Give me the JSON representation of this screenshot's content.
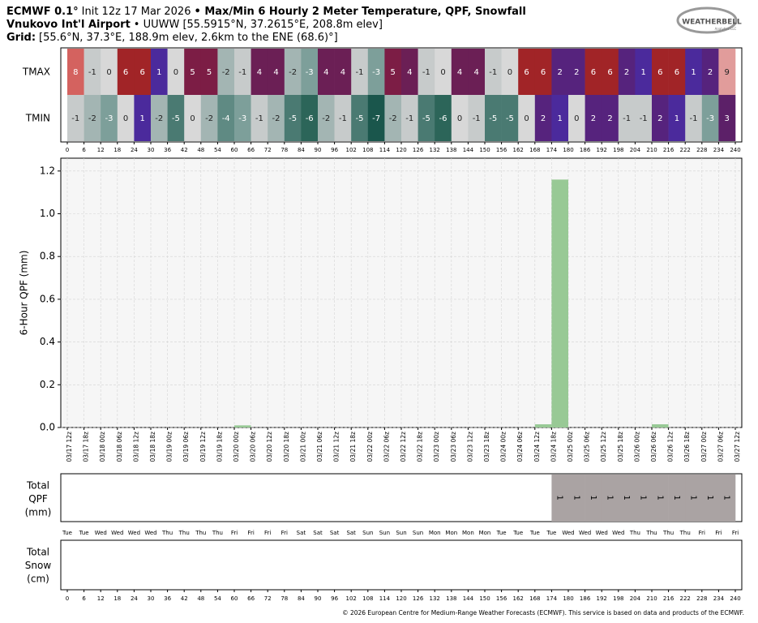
{
  "header": {
    "model": "ECMWF 0.1°",
    "init": "Init 12z 17 Mar 2026",
    "product": "• Max/Min 6 Hourly 2 Meter Temperature,  QPF,  Snowfall",
    "station": "Vnukovo Int'l Airport",
    "station_info": "• UUWW [55.5915°N, 37.2615°E, 208.8m elev]",
    "grid_label": "Grid:",
    "grid_info": "[55.6°N, 37.3°E, 188.9m elev, 2.6km to the ENE (68.6)°]",
    "logo": "WEATHERBELL",
    "logo_sub": "Analytics LLC",
    "footer": "© 2026 European Centre for Medium-Range Weather Forecasts (ECMWF). This service is based on data and products of the ECMWF."
  },
  "chart_data": [
    {
      "type": "heatmap",
      "series": [
        {
          "name": "TMAX",
          "values": [
            8,
            -1,
            0,
            6,
            6,
            1,
            0,
            5,
            5,
            -2,
            -1,
            4,
            4,
            -2,
            -3,
            4,
            4,
            -1,
            -3,
            5,
            4,
            -1,
            0,
            4,
            4,
            -1,
            0,
            6,
            6,
            2,
            2,
            6,
            6,
            2,
            1,
            6,
            6,
            1,
            2,
            9
          ]
        },
        {
          "name": "TMIN",
          "values": [
            -1,
            -2,
            -3,
            0,
            1,
            -2,
            -5,
            0,
            -2,
            -4,
            -3,
            -1,
            -2,
            -5,
            -6,
            -2,
            -1,
            -5,
            -7,
            -2,
            -1,
            -5,
            -6,
            0,
            -1,
            -5,
            -5,
            0,
            2,
            1,
            0,
            2,
            2,
            -1,
            -1,
            2,
            1,
            -1,
            -3,
            3
          ]
        }
      ],
      "xlim": [
        0,
        240
      ],
      "xticks": [
        0,
        6,
        12,
        18,
        24,
        30,
        36,
        42,
        48,
        54,
        60,
        66,
        72,
        78,
        84,
        90,
        96,
        102,
        108,
        114,
        120,
        126,
        132,
        138,
        144,
        150,
        156,
        162,
        168,
        174,
        180,
        186,
        192,
        198,
        204,
        210,
        216,
        222,
        228,
        234,
        240
      ]
    },
    {
      "type": "bar",
      "ylabel": "6-Hour QPF (mm)",
      "color": "#98c995",
      "grid": true,
      "categories": [
        "03/17 12z",
        "03/17 18z",
        "03/18 00z",
        "03/18 06z",
        "03/18 12z",
        "03/18 18z",
        "03/19 00z",
        "03/19 06z",
        "03/19 12z",
        "03/19 18z",
        "03/20 00z",
        "03/20 06z",
        "03/20 12z",
        "03/20 18z",
        "03/21 00z",
        "03/21 06z",
        "03/21 12z",
        "03/21 18z",
        "03/22 00z",
        "03/22 06z",
        "03/22 12z",
        "03/22 18z",
        "03/23 00z",
        "03/23 06z",
        "03/23 12z",
        "03/23 18z",
        "03/24 00z",
        "03/24 06z",
        "03/24 12z",
        "03/24 18z",
        "03/25 00z",
        "03/25 06z",
        "03/25 12z",
        "03/25 18z",
        "03/26 00z",
        "03/26 06z",
        "03/26 12z",
        "03/26 18z",
        "03/27 00z",
        "03/27 06z",
        "03/27 12z"
      ],
      "values": [
        null,
        0,
        0,
        0,
        0,
        0,
        0,
        0,
        0,
        0,
        0,
        0.01,
        0,
        0,
        0,
        0,
        0,
        0,
        0,
        0,
        0,
        0,
        0,
        0,
        0,
        0,
        0,
        0,
        0,
        0.015,
        1.16,
        0,
        0,
        0,
        0,
        0,
        0.015,
        0,
        0,
        0,
        0
      ],
      "ylim": [
        0,
        1.26
      ],
      "yticks": [
        {
          "value": 0,
          "label": "0.0"
        },
        0.2,
        0.4,
        0.6,
        0.8,
        {
          "value": 1,
          "label": "1.0"
        },
        1.2
      ]
    },
    {
      "type": "accumulation",
      "label": [
        "Total",
        "QPF",
        "(mm)"
      ],
      "color": "#aaa3a3",
      "categories": [
        "Tue",
        "Tue",
        "Wed",
        "Wed",
        "Wed",
        "Wed",
        "Thu",
        "Thu",
        "Thu",
        "Thu",
        "Fri",
        "Fri",
        "Fri",
        "Fri",
        "Sat",
        "Sat",
        "Sat",
        "Sat",
        "Sun",
        "Sun",
        "Sun",
        "Sun",
        "Mon",
        "Mon",
        "Mon",
        "Mon",
        "Tue",
        "Tue",
        "Tue",
        "Tue",
        "Wed",
        "Wed",
        "Wed",
        "Wed",
        "Thu",
        "Thu",
        "Thu",
        "Thu",
        "Fri",
        "Fri",
        "Fri"
      ],
      "values": [
        null,
        null,
        null,
        null,
        null,
        null,
        null,
        null,
        null,
        null,
        null,
        null,
        null,
        null,
        null,
        null,
        null,
        null,
        null,
        null,
        null,
        null,
        null,
        null,
        null,
        null,
        null,
        null,
        null,
        null,
        1,
        1,
        1,
        1,
        1,
        1,
        1,
        1,
        1,
        1,
        1
      ]
    },
    {
      "type": "accumulation",
      "label": [
        "Total",
        "Snow",
        "(cm)"
      ],
      "xticks": [
        0,
        6,
        12,
        18,
        24,
        30,
        36,
        42,
        48,
        54,
        60,
        66,
        72,
        78,
        84,
        90,
        96,
        102,
        108,
        114,
        120,
        126,
        132,
        138,
        144,
        150,
        156,
        162,
        168,
        174,
        180,
        186,
        192,
        198,
        204,
        210,
        216,
        222,
        228,
        234,
        240
      ]
    }
  ]
}
